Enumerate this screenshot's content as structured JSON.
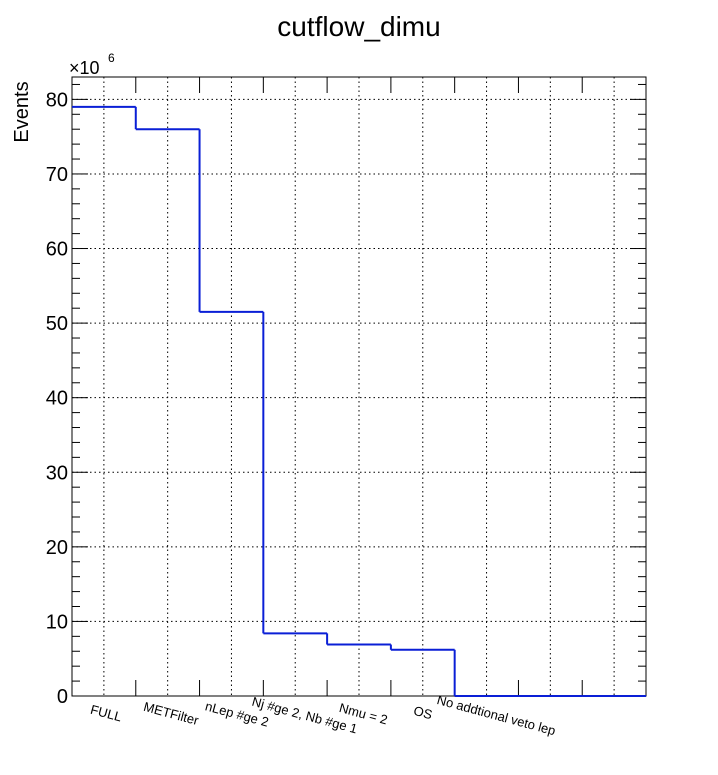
{
  "chart_data": {
    "type": "histogram",
    "title": "cutflow_dimu",
    "ylabel": "Events",
    "xlabel": "",
    "y_multiplier_base": "×10",
    "y_multiplier_exp": "6",
    "ylim": [
      0,
      83
    ],
    "y_ticks": [
      0,
      10,
      20,
      30,
      40,
      50,
      60,
      70,
      80
    ],
    "y_tick_labels": [
      "0",
      "10",
      "20",
      "30",
      "40",
      "50",
      "60",
      "70",
      "80"
    ],
    "y_unit_scale": 1000000,
    "bins": 9,
    "categories": [
      "FULL",
      "METFilter",
      "nLep #ge 2",
      "Nj #ge 2, Nb #ge 1",
      "Nmu = 2",
      "OS",
      "No addtional veto lep",
      "",
      ""
    ],
    "values": [
      79.0,
      76.0,
      51.5,
      8.4,
      6.9,
      6.2,
      0,
      0,
      0
    ],
    "grid": true,
    "line_color": "#0a1fd6"
  }
}
